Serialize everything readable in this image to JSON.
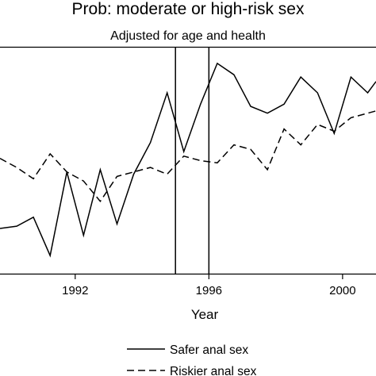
{
  "chart_data": {
    "type": "line",
    "title": "Prob: moderate or high-risk sex",
    "subtitle": "Adjusted for age and health",
    "xlabel": "Year",
    "ylabel": "",
    "xlim": [
      1989.75,
      2001
    ],
    "ylim": [
      0,
      1
    ],
    "x_ticks": [
      1992,
      1996,
      2000
    ],
    "x_tick_labels": [
      "1992",
      "1996",
      "2000"
    ],
    "grid": false,
    "legend_position": "bottom",
    "reference_lines_x": [
      1995,
      1996
    ],
    "series": [
      {
        "name": "Safer anal sex",
        "style": "solid",
        "x": [
          1989.75,
          1990.25,
          1990.75,
          1991.25,
          1991.75,
          1992.25,
          1992.75,
          1993.25,
          1993.75,
          1994.25,
          1994.75,
          1995.25,
          1995.75,
          1996.25,
          1996.75,
          1997.25,
          1997.75,
          1998.25,
          1998.75,
          1999.25,
          1999.75,
          2000.25,
          2000.75,
          2001
        ],
        "values": [
          0.2,
          0.21,
          0.25,
          0.08,
          0.45,
          0.17,
          0.46,
          0.22,
          0.44,
          0.58,
          0.8,
          0.54,
          0.75,
          0.93,
          0.88,
          0.74,
          0.71,
          0.75,
          0.87,
          0.8,
          0.62,
          0.87,
          0.8,
          0.85
        ]
      },
      {
        "name": "Riskier anal sex",
        "style": "dashed",
        "x": [
          1989.75,
          1990.25,
          1990.75,
          1991.25,
          1991.75,
          1992.25,
          1992.75,
          1993.25,
          1993.75,
          1994.25,
          1994.75,
          1995.25,
          1995.75,
          1996.25,
          1996.75,
          1997.25,
          1997.75,
          1998.25,
          1998.75,
          1999.25,
          1999.75,
          2000.25,
          2000.75,
          2001
        ],
        "values": [
          0.51,
          0.47,
          0.42,
          0.53,
          0.45,
          0.41,
          0.32,
          0.43,
          0.45,
          0.47,
          0.44,
          0.52,
          0.5,
          0.49,
          0.57,
          0.55,
          0.46,
          0.64,
          0.57,
          0.66,
          0.63,
          0.69,
          0.71,
          0.72
        ]
      }
    ]
  }
}
